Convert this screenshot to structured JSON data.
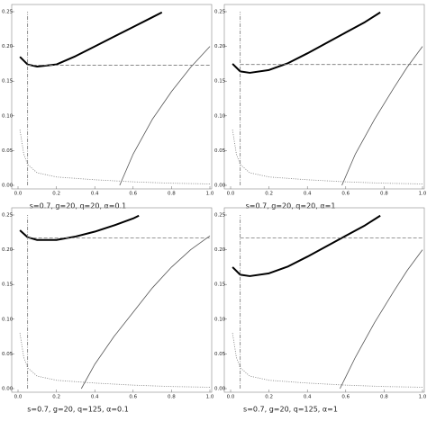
{
  "chart_data": [
    {
      "type": "line",
      "caption": "s=0.7, g=20, q=20, α=0.1",
      "xlim": [
        0,
        1
      ],
      "ylim": [
        0,
        0.25
      ],
      "xticks": [
        {
          "value": 0,
          "label": "0.0"
        },
        0.2,
        0.4,
        0.6,
        0.8,
        {
          "value": 1,
          "label": "1.0"
        }
      ],
      "yticks": [
        {
          "value": 0,
          "label": "0.00"
        },
        0.05,
        {
          "value": 0.1,
          "label": "0.10"
        },
        0.15,
        {
          "value": 0.2,
          "label": "0.20"
        },
        0.25
      ],
      "series": [
        {
          "style": "thick",
          "color": "#000000",
          "x": [
            0.01,
            0.05,
            0.1,
            0.2,
            0.3,
            0.4,
            0.5,
            0.6,
            0.7,
            0.75
          ],
          "values": [
            0.185,
            0.174,
            0.171,
            0.174,
            0.186,
            0.2,
            0.214,
            0.228,
            0.242,
            0.249
          ]
        },
        {
          "style": "thin",
          "color": "#555555",
          "x": [
            0.53,
            0.6,
            0.7,
            0.8,
            0.9,
            1.0
          ],
          "values": [
            0,
            0.045,
            0.095,
            0.135,
            0.17,
            0.2
          ]
        },
        {
          "style": "dotted",
          "color": "#777777",
          "x": [
            0.01,
            0.03,
            0.05,
            0.1,
            0.2,
            0.4,
            0.6,
            0.8,
            1.0
          ],
          "values": [
            0.08,
            0.045,
            0.03,
            0.018,
            0.012,
            0.008,
            0.005,
            0.003,
            0.002
          ]
        },
        {
          "style": "dashed",
          "color": "#777777",
          "x": [
            0.05,
            1.0
          ],
          "values": [
            0.173,
            0.173
          ]
        },
        {
          "style": "dashdot",
          "color": "#777777",
          "x": [
            0.05,
            0.05
          ],
          "values": [
            0,
            0.25
          ]
        }
      ]
    },
    {
      "type": "line",
      "caption": "s=0.7, g=20, q=20, α=1",
      "xlim": [
        0,
        1
      ],
      "ylim": [
        0,
        0.25
      ],
      "xticks": [
        {
          "value": 0,
          "label": "0.0"
        },
        0.2,
        0.4,
        0.6,
        0.8,
        {
          "value": 1,
          "label": "1.0"
        }
      ],
      "yticks": [
        {
          "value": 0,
          "label": "0.00"
        },
        0.05,
        {
          "value": 0.1,
          "label": "0.10"
        },
        0.15,
        {
          "value": 0.2,
          "label": "0.20"
        },
        0.25
      ],
      "series": [
        {
          "style": "thick",
          "color": "#000000",
          "x": [
            0.01,
            0.05,
            0.1,
            0.2,
            0.3,
            0.4,
            0.5,
            0.6,
            0.7,
            0.78
          ],
          "values": [
            0.175,
            0.164,
            0.162,
            0.166,
            0.176,
            0.19,
            0.205,
            0.22,
            0.235,
            0.249
          ]
        },
        {
          "style": "thin",
          "color": "#555555",
          "x": [
            0.58,
            0.65,
            0.75,
            0.85,
            0.92,
            1.0
          ],
          "values": [
            0,
            0.045,
            0.095,
            0.14,
            0.17,
            0.2
          ]
        },
        {
          "style": "dotted",
          "color": "#777777",
          "x": [
            0.01,
            0.03,
            0.05,
            0.1,
            0.2,
            0.4,
            0.6,
            0.8,
            1.0
          ],
          "values": [
            0.08,
            0.045,
            0.03,
            0.018,
            0.012,
            0.008,
            0.005,
            0.003,
            0.002
          ]
        },
        {
          "style": "dashed",
          "color": "#777777",
          "x": [
            0.05,
            1.0
          ],
          "values": [
            0.174,
            0.174
          ]
        },
        {
          "style": "dashdot",
          "color": "#777777",
          "x": [
            0.05,
            0.05
          ],
          "values": [
            0,
            0.25
          ]
        }
      ]
    },
    {
      "type": "line",
      "caption": "s=0.7, g=20, q=125, α=0.1",
      "xlim": [
        0,
        1
      ],
      "ylim": [
        0,
        0.25
      ],
      "xticks": [
        {
          "value": 0,
          "label": "0.0"
        },
        0.2,
        0.4,
        0.6,
        0.8,
        {
          "value": 1,
          "label": "1.0"
        }
      ],
      "yticks": [
        {
          "value": 0,
          "label": "0.00"
        },
        0.05,
        {
          "value": 0.1,
          "label": "0.10"
        },
        0.15,
        {
          "value": 0.2,
          "label": "0.20"
        },
        0.25
      ],
      "series": [
        {
          "style": "thick",
          "color": "#000000",
          "x": [
            0.01,
            0.05,
            0.1,
            0.2,
            0.3,
            0.4,
            0.5,
            0.6,
            0.63
          ],
          "values": [
            0.228,
            0.218,
            0.214,
            0.214,
            0.219,
            0.226,
            0.235,
            0.245,
            0.249
          ]
        },
        {
          "style": "thin",
          "color": "#555555",
          "x": [
            0.33,
            0.4,
            0.5,
            0.6,
            0.7,
            0.8,
            0.9,
            1.0
          ],
          "values": [
            0,
            0.035,
            0.075,
            0.11,
            0.145,
            0.175,
            0.2,
            0.22
          ]
        },
        {
          "style": "dotted",
          "color": "#777777",
          "x": [
            0.01,
            0.03,
            0.05,
            0.1,
            0.2,
            0.4,
            0.6,
            0.8,
            1.0
          ],
          "values": [
            0.08,
            0.045,
            0.03,
            0.018,
            0.012,
            0.008,
            0.005,
            0.003,
            0.002
          ]
        },
        {
          "style": "dashed",
          "color": "#777777",
          "x": [
            0.05,
            1.0
          ],
          "values": [
            0.217,
            0.217
          ]
        },
        {
          "style": "dashdot",
          "color": "#777777",
          "x": [
            0.05,
            0.05
          ],
          "values": [
            0,
            0.25
          ]
        }
      ]
    },
    {
      "type": "line",
      "caption": "s=0.7, g=20, q=125, α=1",
      "xlim": [
        0,
        1
      ],
      "ylim": [
        0,
        0.25
      ],
      "xticks": [
        {
          "value": 0,
          "label": "0.0"
        },
        0.2,
        0.4,
        0.6,
        0.8,
        {
          "value": 1,
          "label": "1.0"
        }
      ],
      "yticks": [
        {
          "value": 0,
          "label": "0.00"
        },
        0.05,
        {
          "value": 0.1,
          "label": "0.10"
        },
        0.15,
        {
          "value": 0.2,
          "label": "0.20"
        },
        0.25
      ],
      "series": [
        {
          "style": "thick",
          "color": "#000000",
          "x": [
            0.01,
            0.05,
            0.1,
            0.2,
            0.3,
            0.4,
            0.5,
            0.6,
            0.7,
            0.78
          ],
          "values": [
            0.175,
            0.164,
            0.162,
            0.166,
            0.176,
            0.19,
            0.205,
            0.22,
            0.235,
            0.249
          ]
        },
        {
          "style": "thin",
          "color": "#555555",
          "x": [
            0.57,
            0.65,
            0.75,
            0.85,
            0.92,
            1.0
          ],
          "values": [
            0,
            0.045,
            0.095,
            0.14,
            0.17,
            0.2
          ]
        },
        {
          "style": "dotted",
          "color": "#777777",
          "x": [
            0.01,
            0.03,
            0.05,
            0.1,
            0.2,
            0.4,
            0.6,
            0.8,
            1.0
          ],
          "values": [
            0.08,
            0.045,
            0.03,
            0.018,
            0.012,
            0.008,
            0.005,
            0.003,
            0.002
          ]
        },
        {
          "style": "dashed",
          "color": "#777777",
          "x": [
            0.05,
            1.0
          ],
          "values": [
            0.217,
            0.217
          ]
        },
        {
          "style": "dashdot",
          "color": "#777777",
          "x": [
            0.05,
            0.05
          ],
          "values": [
            0,
            0.25
          ]
        }
      ]
    }
  ]
}
